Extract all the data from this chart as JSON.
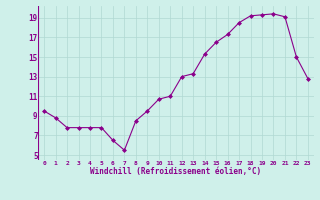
{
  "x": [
    0,
    1,
    2,
    3,
    4,
    5,
    6,
    7,
    8,
    9,
    10,
    11,
    12,
    13,
    14,
    15,
    16,
    17,
    18,
    19,
    20,
    21,
    22,
    23
  ],
  "y": [
    9.5,
    8.8,
    7.8,
    7.8,
    7.8,
    7.8,
    6.5,
    5.5,
    8.5,
    9.5,
    10.7,
    11.0,
    13.0,
    13.3,
    15.3,
    16.5,
    17.3,
    18.5,
    19.2,
    19.3,
    19.4,
    19.1,
    15.0,
    12.8
  ],
  "line_color": "#8B008B",
  "marker": "D",
  "marker_size": 2.0,
  "bg_color": "#cff0ea",
  "grid_color": "#b0d8d2",
  "xlabel": "Windchill (Refroidissement éolien,°C)",
  "xlabel_color": "#8B008B",
  "tick_color": "#8B008B",
  "ylim": [
    4.5,
    20.2
  ],
  "yticks": [
    5,
    7,
    9,
    11,
    13,
    15,
    17,
    19
  ],
  "xlim": [
    -0.5,
    23.5
  ],
  "xticks": [
    0,
    1,
    2,
    3,
    4,
    5,
    6,
    7,
    8,
    9,
    10,
    11,
    12,
    13,
    14,
    15,
    16,
    17,
    18,
    19,
    20,
    21,
    22,
    23
  ]
}
